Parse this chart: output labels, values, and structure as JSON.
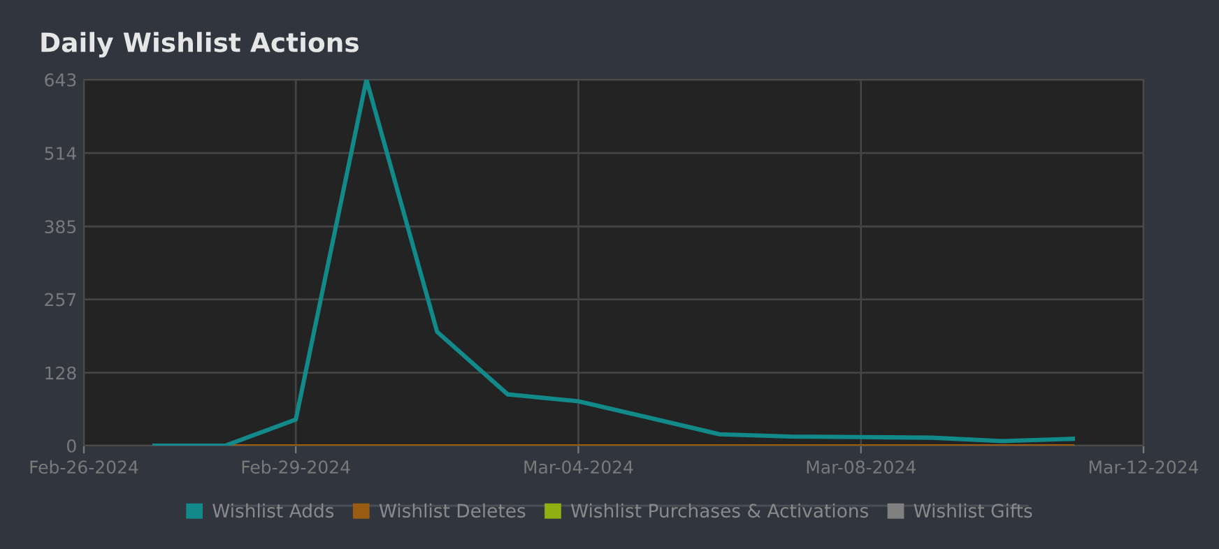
{
  "chart_data": {
    "type": "line",
    "title": "Daily Wishlist Actions",
    "x": [
      "2024-02-27",
      "2024-02-28",
      "2024-02-29",
      "2024-03-01",
      "2024-03-02",
      "2024-03-03",
      "2024-03-04",
      "2024-03-05",
      "2024-03-06",
      "2024-03-07",
      "2024-03-08",
      "2024-03-09",
      "2024-03-10",
      "2024-03-11"
    ],
    "series": [
      {
        "name": "Wishlist Adds",
        "color": "#128a8a",
        "values": [
          0,
          0,
          46,
          643,
          200,
          90,
          78,
          49,
          20,
          16,
          15,
          14,
          8,
          12
        ]
      },
      {
        "name": "Wishlist Deletes",
        "color": "#9a5c10",
        "values": [
          0,
          0,
          0,
          0,
          0,
          0,
          0,
          0,
          0,
          0,
          0,
          0,
          0,
          0
        ]
      },
      {
        "name": "Wishlist Purchases & Activations",
        "color": "#8fb010",
        "values": [
          null,
          null,
          null,
          null,
          null,
          null,
          null,
          null,
          null,
          null,
          null,
          null,
          null,
          null
        ]
      },
      {
        "name": "Wishlist Gifts",
        "color": "#808080",
        "values": [
          null,
          null,
          null,
          null,
          null,
          null,
          null,
          null,
          null,
          null,
          null,
          null,
          null,
          null
        ]
      }
    ],
    "xlim": [
      "2024-02-26",
      "2024-03-12"
    ],
    "xticks": [
      {
        "value": "2024-02-26",
        "label": "Feb-26-2024"
      },
      {
        "value": "2024-02-29",
        "label": "Feb-29-2024"
      },
      {
        "value": "2024-03-04",
        "label": "Mar-04-2024"
      },
      {
        "value": "2024-03-08",
        "label": "Mar-08-2024"
      },
      {
        "value": "2024-03-12",
        "label": "Mar-12-2024"
      }
    ],
    "ylim": [
      0,
      643
    ],
    "yticks": [
      0,
      128,
      257,
      385,
      514,
      643
    ],
    "grid": true,
    "legend": "bottom",
    "marker": "none",
    "line_style": "solid"
  }
}
